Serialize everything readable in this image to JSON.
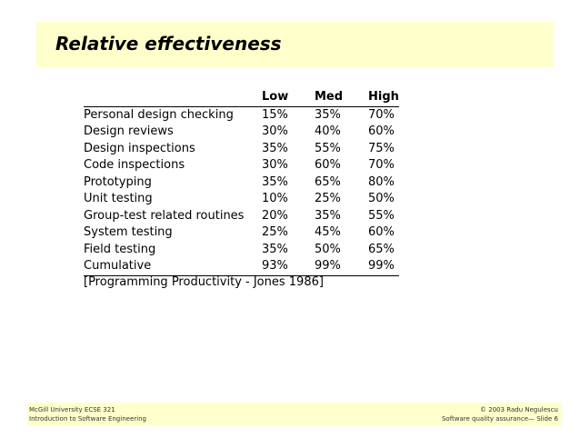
{
  "title": "Relative effectiveness",
  "table": {
    "headers": [
      "",
      "Low",
      "Med",
      "High"
    ],
    "rows": [
      [
        "Personal design checking",
        "15%",
        "35%",
        "70%"
      ],
      [
        "Design reviews",
        "30%",
        "40%",
        "60%"
      ],
      [
        "Design inspections",
        "35%",
        "55%",
        "75%"
      ],
      [
        "Code inspections",
        "30%",
        "60%",
        "70%"
      ],
      [
        "Prototyping",
        "35%",
        "65%",
        "80%"
      ],
      [
        "Unit testing",
        "10%",
        "25%",
        "50%"
      ],
      [
        "Group-test related routines",
        "20%",
        "35%",
        "55%"
      ],
      [
        "System testing",
        "25%",
        "45%",
        "60%"
      ],
      [
        "Field testing",
        "35%",
        "50%",
        "65%"
      ],
      [
        "Cumulative",
        "93%",
        "99%",
        "99%"
      ]
    ]
  },
  "citation": "[Programming Productivity - Jones 1986]",
  "footer": {
    "left_line1": "McGill University ECSE 321",
    "left_line2": "Introduction to Software Engineering",
    "right_line1": "© 2003 Radu Negulescu",
    "right_line2": "Software quality assurance— Slide 6"
  },
  "colors": {
    "panel_background": "#ffffcc"
  }
}
